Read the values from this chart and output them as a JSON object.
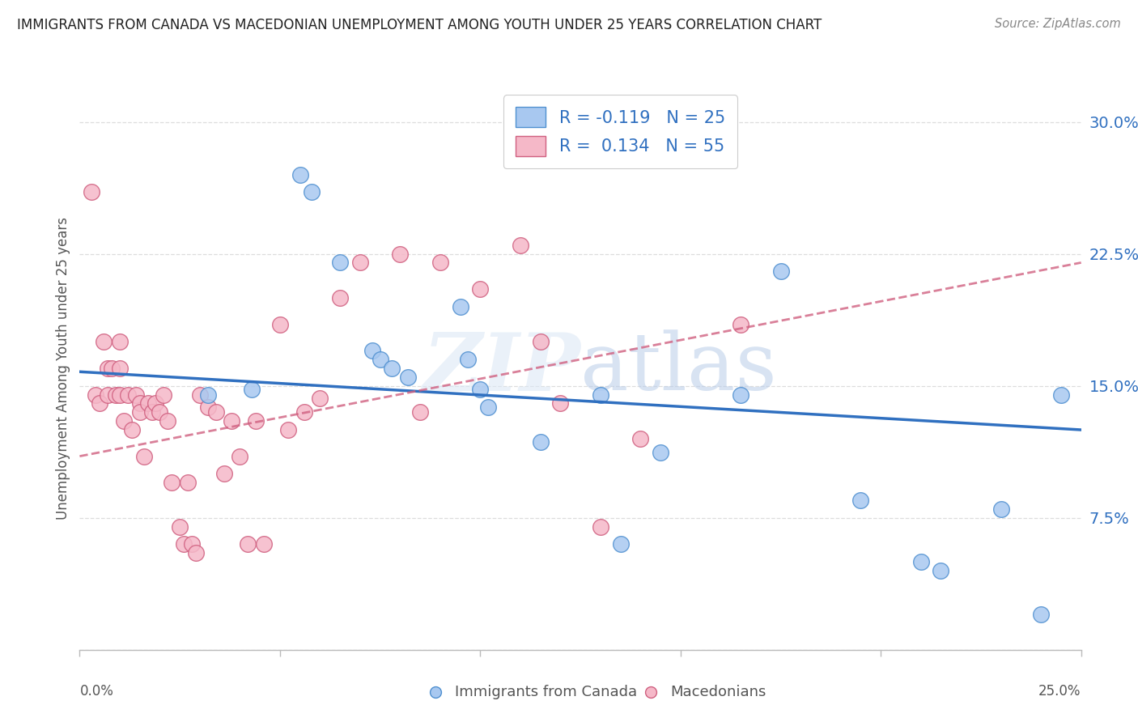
{
  "title": "IMMIGRANTS FROM CANADA VS MACEDONIAN UNEMPLOYMENT AMONG YOUTH UNDER 25 YEARS CORRELATION CHART",
  "source": "Source: ZipAtlas.com",
  "ylabel": "Unemployment Among Youth under 25 years",
  "ytick_labels": [
    "",
    "7.5%",
    "15.0%",
    "22.5%",
    "30.0%"
  ],
  "ytick_values": [
    0.0,
    0.075,
    0.15,
    0.225,
    0.3
  ],
  "xlim": [
    0.0,
    0.25
  ],
  "ylim": [
    0.0,
    0.32
  ],
  "watermark": "ZIPatlas",
  "blue_scatter_x": [
    0.032,
    0.043,
    0.055,
    0.058,
    0.065,
    0.073,
    0.075,
    0.078,
    0.082,
    0.095,
    0.097,
    0.1,
    0.102,
    0.115,
    0.13,
    0.135,
    0.145,
    0.165,
    0.175,
    0.195,
    0.21,
    0.215,
    0.23,
    0.24,
    0.245
  ],
  "blue_scatter_y": [
    0.145,
    0.148,
    0.27,
    0.26,
    0.22,
    0.17,
    0.165,
    0.16,
    0.155,
    0.195,
    0.165,
    0.148,
    0.138,
    0.118,
    0.145,
    0.06,
    0.112,
    0.145,
    0.215,
    0.085,
    0.05,
    0.045,
    0.08,
    0.02,
    0.145
  ],
  "pink_scatter_x": [
    0.003,
    0.004,
    0.005,
    0.006,
    0.007,
    0.007,
    0.008,
    0.009,
    0.01,
    0.01,
    0.01,
    0.011,
    0.012,
    0.013,
    0.014,
    0.015,
    0.015,
    0.016,
    0.017,
    0.018,
    0.019,
    0.02,
    0.021,
    0.022,
    0.023,
    0.025,
    0.026,
    0.027,
    0.028,
    0.029,
    0.03,
    0.032,
    0.034,
    0.036,
    0.038,
    0.04,
    0.042,
    0.044,
    0.046,
    0.05,
    0.052,
    0.056,
    0.06,
    0.065,
    0.07,
    0.08,
    0.085,
    0.09,
    0.1,
    0.11,
    0.115,
    0.12,
    0.13,
    0.14,
    0.165
  ],
  "pink_scatter_y": [
    0.26,
    0.145,
    0.14,
    0.175,
    0.16,
    0.145,
    0.16,
    0.145,
    0.175,
    0.16,
    0.145,
    0.13,
    0.145,
    0.125,
    0.145,
    0.14,
    0.135,
    0.11,
    0.14,
    0.135,
    0.14,
    0.135,
    0.145,
    0.13,
    0.095,
    0.07,
    0.06,
    0.095,
    0.06,
    0.055,
    0.145,
    0.138,
    0.135,
    0.1,
    0.13,
    0.11,
    0.06,
    0.13,
    0.06,
    0.185,
    0.125,
    0.135,
    0.143,
    0.2,
    0.22,
    0.225,
    0.135,
    0.22,
    0.205,
    0.23,
    0.175,
    0.14,
    0.07,
    0.12,
    0.185
  ],
  "blue_line_x": [
    0.0,
    0.25
  ],
  "blue_line_y": [
    0.158,
    0.125
  ],
  "pink_line_x": [
    0.0,
    0.25
  ],
  "pink_line_y": [
    0.11,
    0.22
  ],
  "blue_color": "#a8c8f0",
  "blue_edge_color": "#5090d0",
  "pink_color": "#f5b8c8",
  "pink_edge_color": "#d06080",
  "blue_line_color": "#3070c0",
  "pink_line_color": "#d06080",
  "background_color": "#ffffff",
  "grid_color": "#dddddd"
}
